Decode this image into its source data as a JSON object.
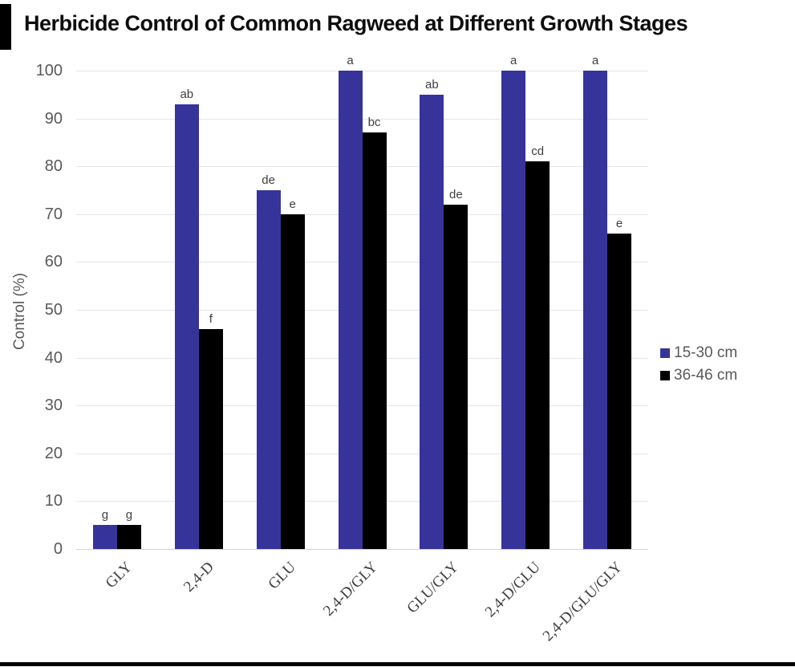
{
  "page": {
    "title": "Herbicide Control of Common Ragweed at Different Growth Stages"
  },
  "colors": {
    "series1": "#36349b",
    "series2": "#000000",
    "gridline": "#e5e5e5",
    "axis_text": "#595959",
    "annotation_text": "#3f3f3f",
    "title_text": "#0d0d0d",
    "accent_bar": "#000000"
  },
  "chart_data": {
    "type": "bar",
    "title": "Herbicide Control of Common Ragweed at Different Growth Stages",
    "xlabel": "",
    "ylabel": "Control (%)",
    "ylim": [
      0,
      100
    ],
    "yticks": [
      0,
      10,
      20,
      30,
      40,
      50,
      60,
      70,
      80,
      90,
      100
    ],
    "grid": true,
    "legend_position": "right",
    "categories": [
      "GLY",
      "2,4-D",
      "GLU",
      "2,4-D/GLY",
      "GLU/GLY",
      "2,4-D/GLU",
      "2,4-D/GLU/GLY"
    ],
    "series": [
      {
        "name": "15-30 cm",
        "color": "#36349b",
        "values": [
          5,
          93,
          75,
          100,
          95,
          100,
          100
        ],
        "letters": [
          "g",
          "ab",
          "de",
          "a",
          "ab",
          "a",
          "a"
        ]
      },
      {
        "name": "36-46 cm",
        "color": "#000000",
        "values": [
          5,
          46,
          70,
          87,
          72,
          81,
          66
        ],
        "letters": [
          "g",
          "f",
          "e",
          "bc",
          "de",
          "cd",
          "e"
        ]
      }
    ]
  }
}
